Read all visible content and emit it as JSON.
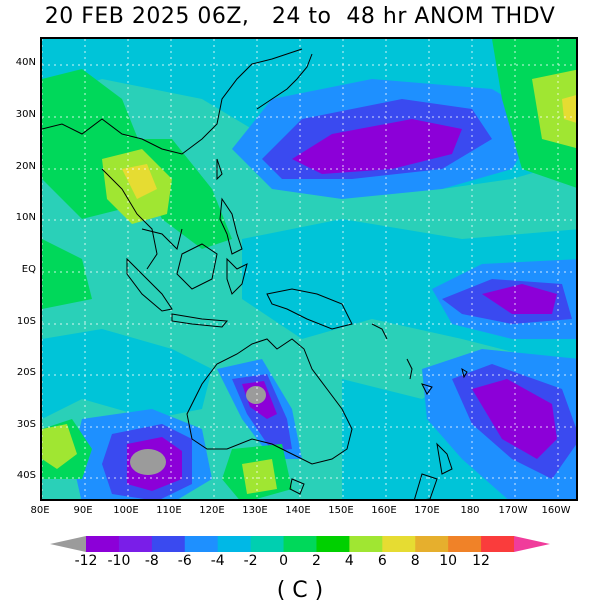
{
  "title": "20 FEB 2025 06Z,   24 to  48 hr ANOM THDV",
  "lat_labels": [
    "40N",
    "30N",
    "20N",
    "10N",
    "EQ",
    "10S",
    "20S",
    "30S",
    "40S"
  ],
  "lon_labels": [
    "80E",
    "90E",
    "100E",
    "110E",
    "120E",
    "130E",
    "140E",
    "150E",
    "160E",
    "170E",
    "180",
    "170W",
    "160W"
  ],
  "colorbar": {
    "ticks": [
      "-12",
      "-10",
      "-8",
      "-6",
      "-4",
      "-2",
      "0",
      "2",
      "4",
      "6",
      "8",
      "10",
      "12"
    ],
    "colors": [
      "#9b9b9b",
      "#8c00d8",
      "#7a1ee8",
      "#3a4af0",
      "#1e90ff",
      "#00b8e6",
      "#00cfb0",
      "#00d85a",
      "#00d000",
      "#a0e632",
      "#e6dc32",
      "#e6af2d",
      "#f08228",
      "#fa3c3c",
      "#f03c9b"
    ],
    "units": "( C )"
  },
  "map": {
    "region": "80E–155W, 45S–45N",
    "variable": "24 to 48 hr temperature anomaly (THDV)"
  }
}
